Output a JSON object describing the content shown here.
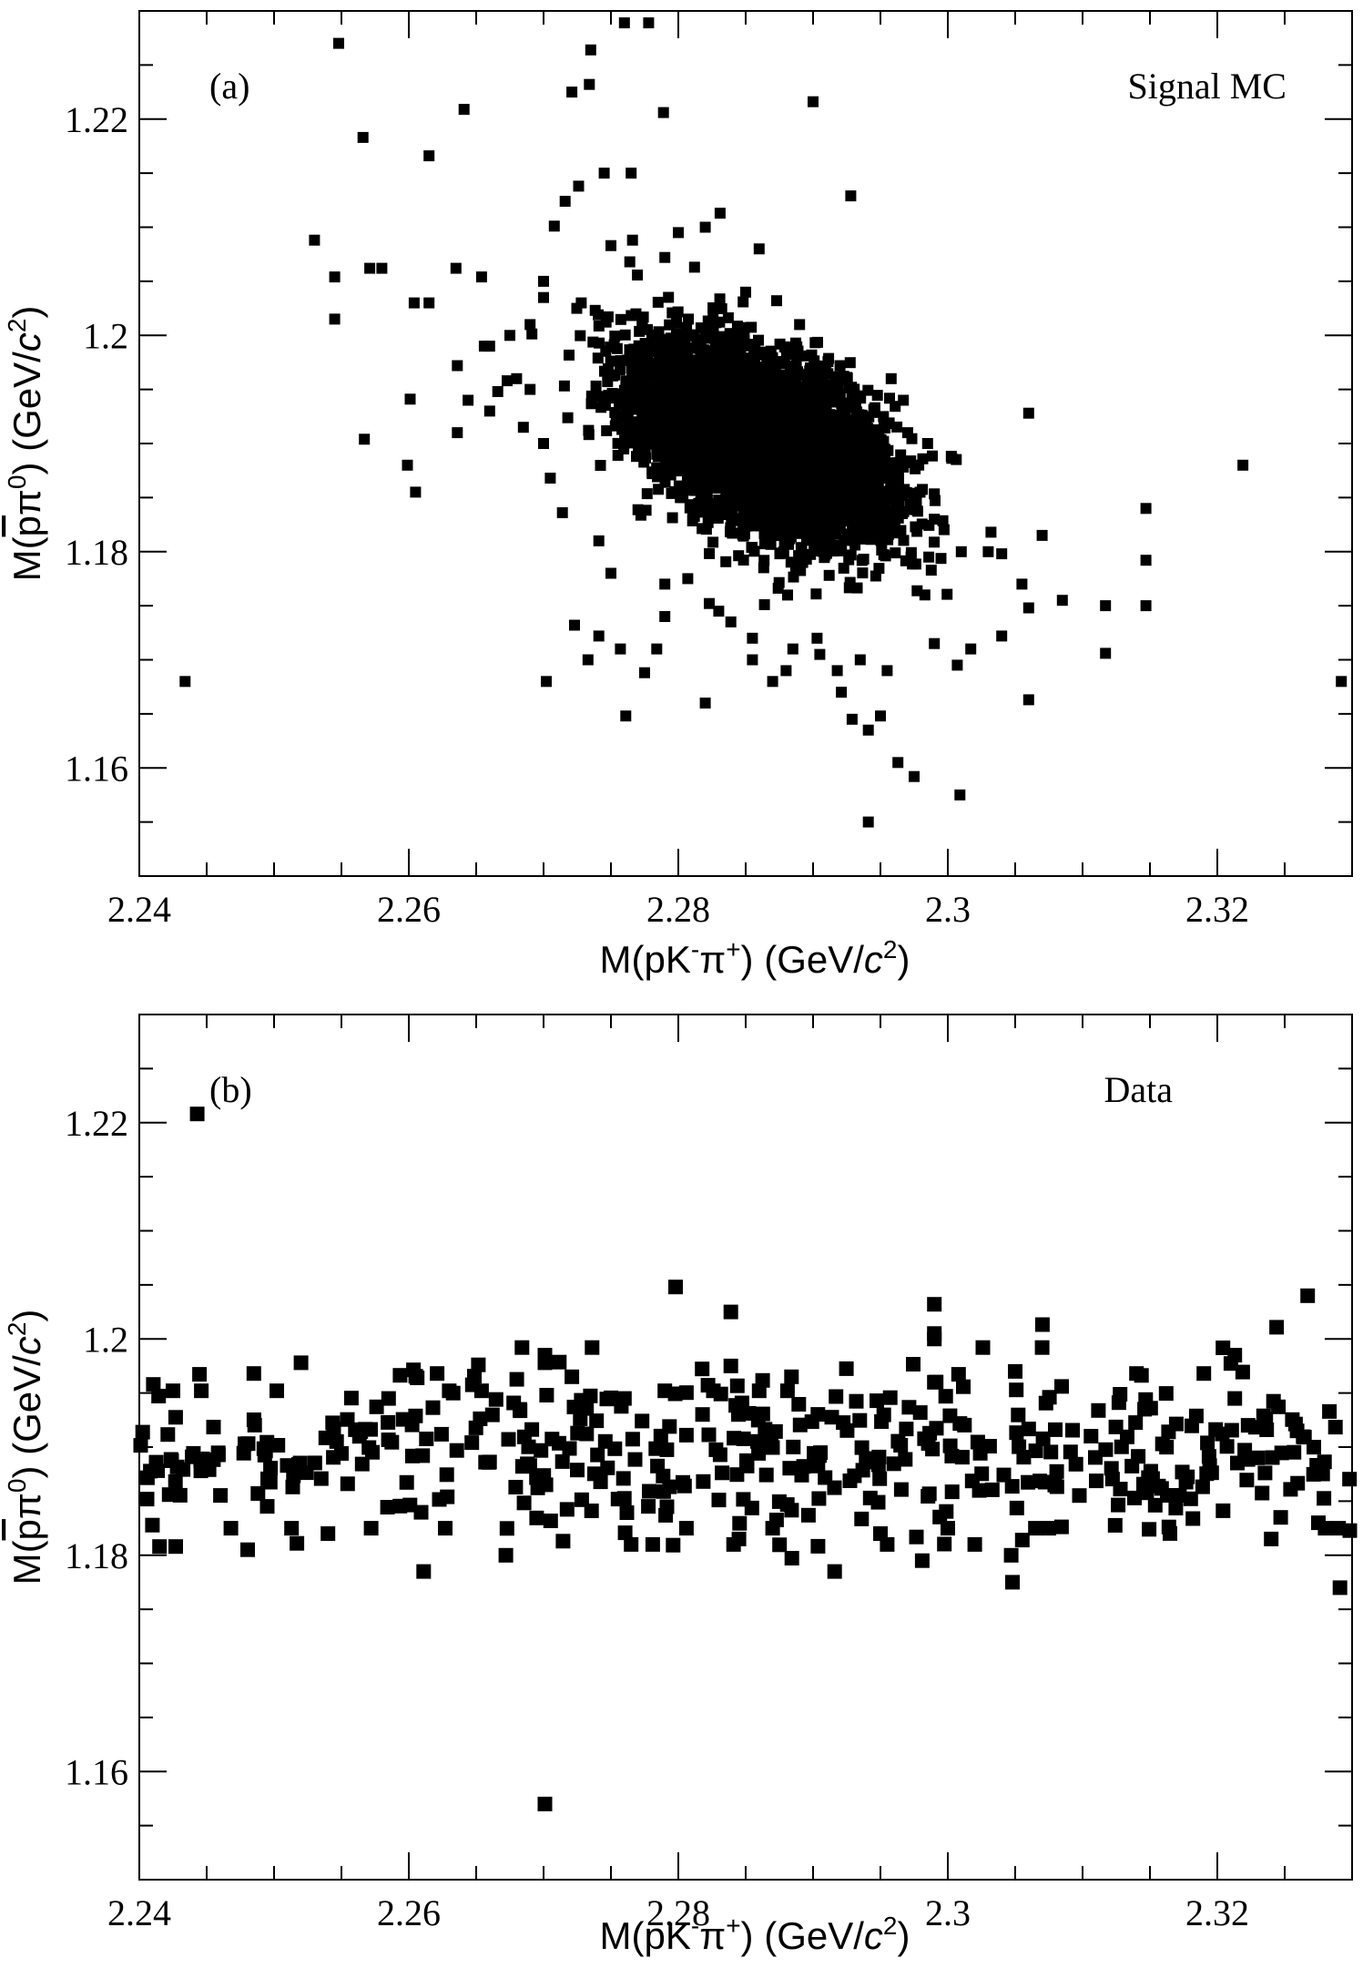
{
  "chart_data": [
    {
      "type": "scatter",
      "panel_label": "(a)",
      "annotation": "Signal MC",
      "xlabel": {
        "main": "M(pK",
        "sup1": "-",
        "mid": "π",
        "sup2": "+",
        "tail": ") (GeV/",
        "unit_c": "c",
        "sup3": "2",
        "close": ")"
      },
      "ylabel": {
        "main": "M(",
        "pbar": "p",
        "mid": "π",
        "sup": "0",
        "tail": ") (GeV/",
        "unit_c": "c",
        "sup2": "2",
        "close": ")"
      },
      "xlim": [
        2.24,
        2.33
      ],
      "ylim": [
        1.15,
        1.23
      ],
      "x_ticks": [
        "2.24",
        "2.26",
        "2.28",
        "2.3",
        "2.32"
      ],
      "y_ticks": [
        "1.16",
        "1.18",
        "1.2",
        "1.22"
      ],
      "core": {
        "x_mean": 2.2862,
        "y_mean": 1.19,
        "x_sd": 0.0046,
        "y_sd": 0.0044,
        "correlation": -0.5,
        "approx_events": 4500
      },
      "points": [
        [
          2.2434,
          1.168
        ],
        [
          2.2548,
          1.227
        ],
        [
          2.2566,
          1.2183
        ],
        [
          2.2615,
          1.2166
        ],
        [
          2.2641,
          1.2209
        ],
        [
          2.276,
          1.2289
        ],
        [
          2.2778,
          1.2289
        ],
        [
          2.2735,
          1.2264
        ],
        [
          2.2734,
          1.2232
        ],
        [
          2.2721,
          1.2225
        ],
        [
          2.2789,
          1.2206
        ],
        [
          2.29,
          1.2216
        ],
        [
          2.2928,
          1.2129
        ],
        [
          2.253,
          1.2088
        ],
        [
          2.2545,
          1.2054
        ],
        [
          2.2545,
          1.2015
        ],
        [
          2.2571,
          1.2062
        ],
        [
          2.258,
          1.2062
        ],
        [
          2.2604,
          1.203
        ],
        [
          2.2615,
          1.203
        ],
        [
          2.2635,
          1.2062
        ],
        [
          2.2654,
          1.2054
        ],
        [
          2.266,
          1.199
        ],
        [
          2.2673,
          1.1958
        ],
        [
          2.2601,
          1.1941
        ],
        [
          2.2567,
          1.1904
        ],
        [
          2.2599,
          1.188
        ],
        [
          2.2605,
          1.1855
        ],
        [
          2.2636,
          1.1972
        ],
        [
          2.266,
          1.193
        ],
        [
          2.2685,
          1.1915
        ],
        [
          2.27,
          1.19
        ],
        [
          2.2705,
          1.1868
        ],
        [
          2.2714,
          1.1836
        ],
        [
          2.2741,
          1.181
        ],
        [
          2.275,
          1.178
        ],
        [
          2.279,
          1.177
        ],
        [
          2.2702,
          1.168
        ],
        [
          2.2761,
          1.1648
        ],
        [
          2.2723,
          1.1732
        ],
        [
          2.2741,
          1.1722
        ],
        [
          2.2784,
          1.171
        ],
        [
          2.2807,
          1.1775
        ],
        [
          2.2823,
          1.1752
        ],
        [
          2.2839,
          1.1735
        ],
        [
          2.2855,
          1.17
        ],
        [
          2.287,
          1.168
        ],
        [
          2.288,
          1.169
        ],
        [
          2.2903,
          1.172
        ],
        [
          2.2918,
          1.169
        ],
        [
          2.2921,
          1.167
        ],
        [
          2.2929,
          1.1645
        ],
        [
          2.2941,
          1.1635
        ],
        [
          2.295,
          1.1648
        ],
        [
          2.2941,
          1.155
        ],
        [
          2.2963,
          1.1605
        ],
        [
          2.2975,
          1.1592
        ],
        [
          2.3009,
          1.1575
        ],
        [
          2.3007,
          1.1695
        ],
        [
          2.3017,
          1.171
        ],
        [
          2.304,
          1.1722
        ],
        [
          2.306,
          1.1663
        ],
        [
          2.3055,
          1.177
        ],
        [
          2.306,
          1.1748
        ],
        [
          2.304,
          1.1798
        ],
        [
          2.307,
          1.1815
        ],
        [
          2.3085,
          1.1755
        ],
        [
          2.3117,
          1.175
        ],
        [
          2.3147,
          1.175
        ],
        [
          2.3117,
          1.1706
        ],
        [
          2.3147,
          1.1792
        ],
        [
          2.3147,
          1.184
        ],
        [
          2.306,
          1.1928
        ],
        [
          2.3219,
          1.188
        ],
        [
          2.3292,
          1.168
        ],
        [
          2.3032,
          1.1818
        ],
        [
          2.301,
          1.18
        ],
        [
          2.299,
          1.183
        ],
        [
          2.2975,
          1.1845
        ],
        [
          2.296,
          1.188
        ],
        [
          2.2985,
          1.19
        ],
        [
          2.2967,
          1.194
        ],
        [
          2.2958,
          1.196
        ],
        [
          2.292,
          1.1972
        ],
        [
          2.289,
          1.201
        ],
        [
          2.2873,
          1.2032
        ],
        [
          2.286,
          1.208
        ],
        [
          2.285,
          1.204
        ],
        [
          2.2831,
          1.2113
        ],
        [
          2.282,
          1.21
        ],
        [
          2.2812,
          1.2063
        ],
        [
          2.28,
          1.2095
        ],
        [
          2.279,
          1.2072
        ],
        [
          2.2764,
          1.2068
        ],
        [
          2.275,
          1.2083
        ],
        [
          2.2745,
          1.215
        ],
        [
          2.2765,
          1.215
        ],
        [
          2.2726,
          1.2138
        ],
        [
          2.2716,
          1.2124
        ],
        [
          2.2708,
          1.2101
        ],
        [
          2.2766,
          1.2088
        ],
        [
          2.2728,
          1.203
        ],
        [
          2.27,
          1.2035
        ],
        [
          2.269,
          1.201
        ],
        [
          2.2675,
          1.2
        ],
        [
          2.2656,
          1.199
        ],
        [
          2.268,
          1.196
        ],
        [
          2.269,
          1.195
        ],
        [
          2.2666,
          1.1948
        ],
        [
          2.2644,
          1.194
        ],
        [
          2.2636,
          1.191
        ],
        [
          2.27,
          1.205
        ],
        [
          2.2733,
          1.17
        ],
        [
          2.2757,
          1.171
        ],
        [
          2.2775,
          1.1688
        ],
        [
          2.282,
          1.166
        ],
        [
          2.279,
          1.174
        ],
        [
          2.283,
          1.1745
        ],
        [
          2.2855,
          1.172
        ],
        [
          2.2885,
          1.171
        ],
        [
          2.2905,
          1.1705
        ],
        [
          2.2935,
          1.17
        ],
        [
          2.2955,
          1.169
        ],
        [
          2.299,
          1.1715
        ],
        [
          2.2983,
          1.176
        ],
        [
          2.303,
          1.18
        ]
      ]
    },
    {
      "type": "scatter",
      "panel_label": "(b)",
      "annotation": "Data",
      "xlabel": {
        "main": "M(pK",
        "sup1": "-",
        "mid": "π",
        "sup2": "+",
        "tail": ") (GeV/",
        "unit_c": "c",
        "sup3": "2",
        "close": ")"
      },
      "ylabel": {
        "main": "M(",
        "pbar": "p",
        "mid": "π",
        "sup": "0",
        "tail": ") (GeV/",
        "unit_c": "c",
        "sup2": "2",
        "close": ")"
      },
      "xlim": [
        2.24,
        2.33
      ],
      "ylim": [
        1.15,
        1.23
      ],
      "x_ticks": [
        "2.24",
        "2.26",
        "2.28",
        "2.3",
        "2.32"
      ],
      "y_ticks": [
        "1.16",
        "1.18",
        "1.2",
        "1.22"
      ],
      "band": {
        "y_center": 1.1895,
        "y_sd": 0.0038,
        "approx_events": 430
      },
      "points": [
        [
          2.2443,
          1.2208
        ],
        [
          2.2701,
          1.157
        ],
        [
          2.2611,
          1.1785
        ],
        [
          2.2672,
          1.18
        ],
        [
          2.2916,
          1.1785
        ],
        [
          2.2981,
          1.1795
        ],
        [
          2.3047,
          1.18
        ],
        [
          2.3048,
          1.1775
        ],
        [
          2.3291,
          1.177
        ],
        [
          2.2798,
          1.2048
        ],
        [
          2.2839,
          1.2025
        ],
        [
          2.299,
          1.2032
        ],
        [
          2.299,
          1.2005
        ],
        [
          2.299,
          1.2
        ],
        [
          2.3267,
          1.204
        ],
        [
          2.2684,
          1.1992
        ],
        [
          2.2701,
          1.1985
        ],
        [
          2.2736,
          1.1992
        ],
        [
          2.2701,
          1.1978
        ],
        [
          2.2839,
          1.1975
        ],
        [
          2.2884,
          1.1965
        ],
        [
          2.3026,
          1.1992
        ],
        [
          2.307,
          1.1992
        ],
        [
          2.3213,
          1.1985
        ],
        [
          2.252,
          1.1978
        ],
        [
          2.2485,
          1.1968
        ],
        [
          2.2446,
          1.1952
        ],
        [
          2.2425,
          1.1952
        ],
        [
          2.2502,
          1.1952
        ],
        [
          2.2585,
          1.1945
        ],
        [
          2.2621,
          1.1968
        ],
        [
          2.263,
          1.1952
        ],
        [
          2.2654,
          1.1952
        ],
        [
          2.2721,
          1.1965
        ],
        [
          2.276,
          1.1945
        ],
        [
          2.279,
          1.1952
        ],
        [
          2.2826,
          1.1952
        ],
        [
          2.286,
          1.1952
        ],
        [
          2.2881,
          1.1952
        ],
        [
          2.299,
          1.196
        ],
        [
          2.305,
          1.197
        ],
        [
          2.314,
          1.1968
        ],
        [
          2.319,
          1.1968
        ],
        [
          2.3213,
          1.1945
        ],
        [
          2.2468,
          1.1825
        ],
        [
          2.2513,
          1.1825
        ],
        [
          2.254,
          1.182
        ],
        [
          2.2572,
          1.1825
        ],
        [
          2.2627,
          1.1825
        ],
        [
          2.2781,
          1.181
        ],
        [
          2.2765,
          1.181
        ],
        [
          2.2806,
          1.1825
        ],
        [
          2.2845,
          1.1815
        ],
        [
          2.2841,
          1.181
        ],
        [
          2.287,
          1.1825
        ],
        [
          2.295,
          1.182
        ],
        [
          2.2955,
          1.181
        ],
        [
          2.3,
          1.1825
        ],
        [
          2.302,
          1.181
        ],
        [
          2.3065,
          1.1825
        ],
        [
          2.3075,
          1.1825
        ],
        [
          2.324,
          1.1815
        ],
        [
          2.3275,
          1.183
        ],
        [
          2.3247,
          1.1835
        ],
        [
          2.328,
          1.1825
        ],
        [
          2.329,
          1.1825
        ],
        [
          2.2415,
          1.1808
        ],
        [
          2.2427,
          1.1808
        ]
      ]
    }
  ]
}
